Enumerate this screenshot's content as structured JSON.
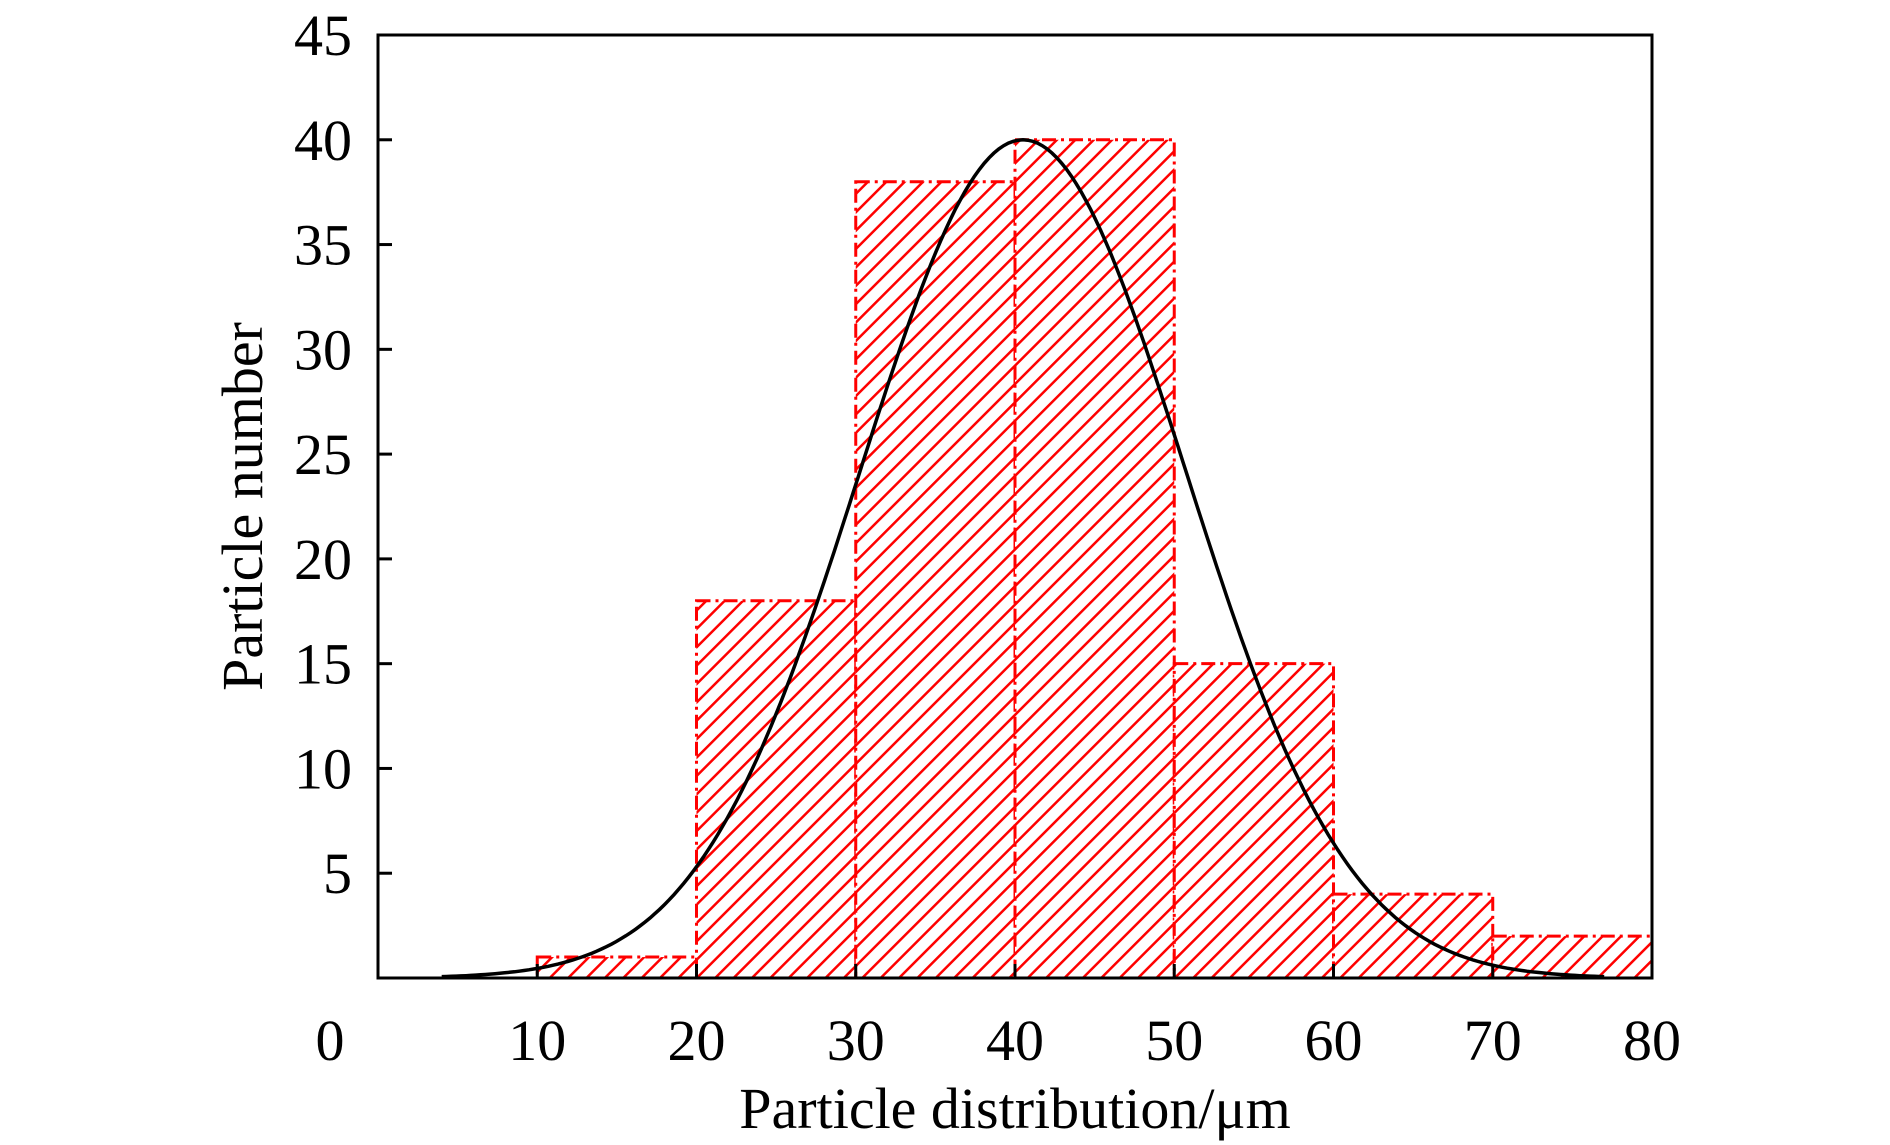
{
  "chart_data": {
    "type": "bar",
    "xlabel": "Particle distribution/μm",
    "ylabel": "Particle number",
    "xlim": [
      0,
      80
    ],
    "ylim": [
      0,
      45
    ],
    "x_ticks": [
      "0",
      "10",
      "20",
      "30",
      "40",
      "50",
      "60",
      "70",
      "80"
    ],
    "y_ticks": [
      "5",
      "10",
      "15",
      "20",
      "25",
      "30",
      "35",
      "40",
      "45"
    ],
    "bins": [
      {
        "from": 10,
        "to": 20,
        "value": 1
      },
      {
        "from": 20,
        "to": 30,
        "value": 18
      },
      {
        "from": 30,
        "to": 40,
        "value": 38
      },
      {
        "from": 40,
        "to": 50,
        "value": 40
      },
      {
        "from": 50,
        "to": 60,
        "value": 15
      },
      {
        "from": 60,
        "to": 70,
        "value": 4
      },
      {
        "from": 70,
        "to": 80,
        "value": 2
      }
    ],
    "fit_curve": {
      "type": "gaussian",
      "peak_x": 40.5,
      "peak_y": 40,
      "sigma": 10.2,
      "x_range": [
        4,
        77
      ]
    },
    "colors": {
      "bar_fill": "#ffffff",
      "bar_hatch": "#ff0000",
      "bar_edge": "#ff0000",
      "curve": "#000000",
      "axes": "#000000"
    },
    "grid": false,
    "legend": "none"
  }
}
